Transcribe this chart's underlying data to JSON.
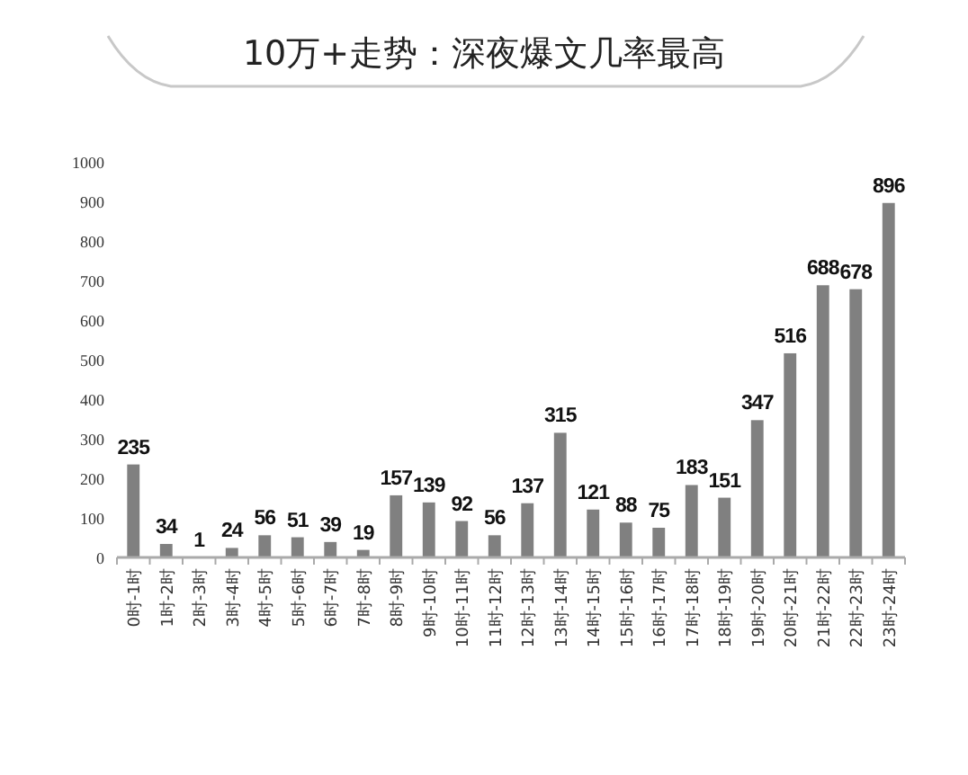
{
  "chart_data": {
    "type": "bar",
    "title": "10万+走势：深夜爆文几率最高",
    "categories": [
      "0时-1时",
      "1时-2时",
      "2时-3时",
      "3时-4时",
      "4时-5时",
      "5时-6时",
      "6时-7时",
      "7时-8时",
      "8时-9时",
      "9时-10时",
      "10时-11时",
      "11时-12时",
      "12时-13时",
      "13时-14时",
      "14时-15时",
      "15时-16时",
      "16时-17时",
      "17时-18时",
      "18时-19时",
      "19时-20时",
      "20时-21时",
      "21时-22时",
      "22时-23时",
      "23时-24时"
    ],
    "values": [
      235,
      34,
      1,
      24,
      56,
      51,
      39,
      19,
      157,
      139,
      92,
      56,
      137,
      315,
      121,
      88,
      75,
      183,
      151,
      347,
      516,
      688,
      678,
      896
    ],
    "color": "#808080",
    "ylim": [
      0,
      1000
    ],
    "yticks": [
      0,
      100,
      200,
      300,
      400,
      500,
      600,
      700,
      800,
      900,
      1000
    ],
    "data_labels": true,
    "grid": false
  }
}
